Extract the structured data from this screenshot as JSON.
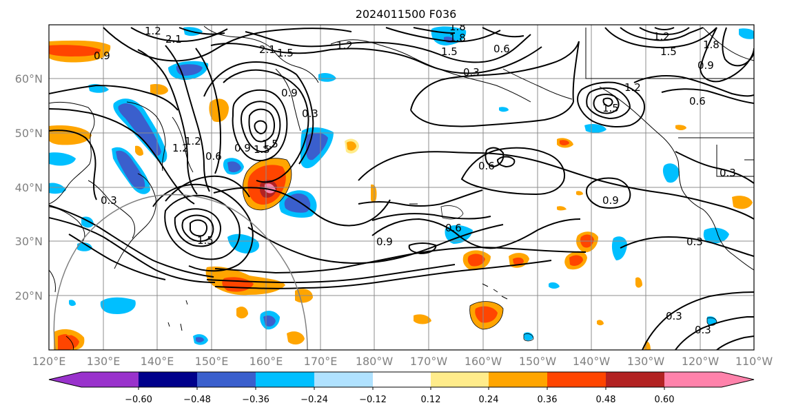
{
  "title": "2024011500 F036",
  "lat_ticks": [
    "60°N",
    "50°N",
    "40°N",
    "30°N",
    "20°N"
  ],
  "lon_ticks": [
    "120°E",
    "130°E",
    "140°E",
    "150°E",
    "160°E",
    "170°E",
    "180°W",
    "170°W",
    "160°W",
    "150°W",
    "140°W",
    "130°W",
    "120°W",
    "110°W"
  ],
  "colorbar": {
    "labels": [
      "−0.60",
      "−0.48",
      "−0.36",
      "−0.24",
      "−0.12",
      "0.12",
      "0.24",
      "0.36",
      "0.48",
      "0.60"
    ],
    "colors": [
      "#9932cc",
      "#00008b",
      "#3a5fcd",
      "#00bfff",
      "#b0e2ff",
      "#ffffff",
      "#ffec8b",
      "#ffa500",
      "#ff4500",
      "#b22222",
      "#ff82ab"
    ]
  },
  "contour_labels": [
    "1.2",
    "2.1",
    "1.5",
    "1.8",
    "0.3",
    "0.6",
    "0.9",
    "1.2",
    "1.5",
    "0.9",
    "0.3",
    "1.5",
    "0.6",
    "0.9",
    "1.2",
    "0.3",
    "0.6",
    "0.9",
    "0.9",
    "0.3",
    "0.3",
    "0.3",
    "1.5",
    "1.2",
    "0.6",
    "1.2",
    "1.5",
    "1.8",
    "2.1",
    "1.2",
    "1.5",
    "0.3",
    "0.9",
    "1.5",
    "1.8",
    "0.6"
  ],
  "colors": {
    "contour": "#000000",
    "grid": "#8c8c8c",
    "axis_label": "#808080"
  }
}
